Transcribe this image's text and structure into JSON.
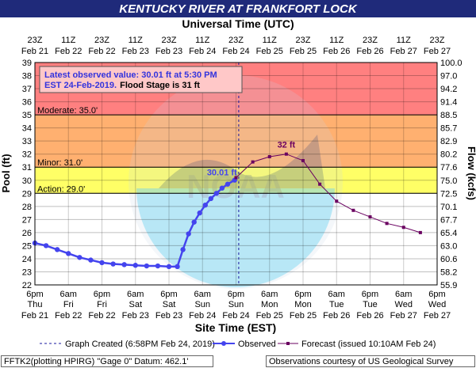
{
  "title": "KENTUCKY RIVER AT FRANKFORT LOCK",
  "utc_axis_label": "Universal Time (UTC)",
  "est_axis_label": "Site Time (EST)",
  "colors": {
    "title_bg": "#1f2a7a",
    "major": "#ff8080",
    "moderate": "#ffb070",
    "minor": "#ffff66",
    "observed": "#4444ee",
    "forecast": "#6a0060",
    "created_line": "#1a1aa0"
  },
  "info_box": {
    "line1": "Latest observed value: 30.01 ft at 5:30 PM",
    "line2a": "EST 24-Feb-2019.",
    "line2b": "Flood Stage is 31 ft"
  },
  "legend": {
    "created": "Graph Created (6:58PM Feb 24, 2019)",
    "observed": "Observed",
    "forecast": "Forecast (issued 10:10AM Feb 24)"
  },
  "footer": {
    "left": "FFTK2(plotting HPIRG) \"Gage 0\" Datum: 462.1'",
    "right": "Observations courtesy of US Geological Survey"
  },
  "chart_data": {
    "type": "line",
    "title": "KENTUCKY RIVER AT FRANKFORT LOCK",
    "ylabel": "Pool (ft)",
    "y2label": "Flow (kcfs)",
    "xlabel": "Site Time (EST)",
    "x2label": "Universal Time (UTC)",
    "ylim": [
      22,
      39
    ],
    "x_range": [
      "2019-02-21 18:00",
      "2019-02-27 18:00"
    ],
    "left_ticks": [
      22,
      23,
      24,
      25,
      26,
      27,
      28,
      29,
      30,
      31,
      32,
      33,
      34,
      35,
      36,
      37,
      38,
      39
    ],
    "right_ticks": [
      "55.9",
      "58.2",
      "60.6",
      "63.0",
      "65.4",
      "67.7",
      "70.1",
      "72.5",
      "75.0",
      "77.6",
      "80.2",
      "82.9",
      "85.7",
      "88.5",
      "91.4",
      "94.2",
      "97.0",
      "100.0"
    ],
    "top_ticks": [
      {
        "t": "23Z",
        "d": "Feb 21"
      },
      {
        "t": "11Z",
        "d": "Feb 22"
      },
      {
        "t": "23Z",
        "d": "Feb 22"
      },
      {
        "t": "11Z",
        "d": "Feb 23"
      },
      {
        "t": "23Z",
        "d": "Feb 23"
      },
      {
        "t": "11Z",
        "d": "Feb 24"
      },
      {
        "t": "23Z",
        "d": "Feb 24"
      },
      {
        "t": "11Z",
        "d": "Feb 25"
      },
      {
        "t": "23Z",
        "d": "Feb 25"
      },
      {
        "t": "11Z",
        "d": "Feb 26"
      },
      {
        "t": "23Z",
        "d": "Feb 26"
      },
      {
        "t": "11Z",
        "d": "Feb 27"
      },
      {
        "t": "23Z",
        "d": "Feb 27"
      }
    ],
    "bottom_ticks": [
      {
        "t": "6pm",
        "w": "Thu",
        "d": "Feb 21"
      },
      {
        "t": "6am",
        "w": "Fri",
        "d": "Feb 22"
      },
      {
        "t": "6pm",
        "w": "Fri",
        "d": "Feb 22"
      },
      {
        "t": "6am",
        "w": "Sat",
        "d": "Feb 23"
      },
      {
        "t": "6pm",
        "w": "Sat",
        "d": "Feb 23"
      },
      {
        "t": "6am",
        "w": "Sun",
        "d": "Feb 24"
      },
      {
        "t": "6pm",
        "w": "Sun",
        "d": "Feb 24"
      },
      {
        "t": "6am",
        "w": "Mon",
        "d": "Feb 25"
      },
      {
        "t": "6pm",
        "w": "Mon",
        "d": "Feb 25"
      },
      {
        "t": "6am",
        "w": "Tue",
        "d": "Feb 26"
      },
      {
        "t": "6pm",
        "w": "Tue",
        "d": "Feb 26"
      },
      {
        "t": "6am",
        "w": "Wed",
        "d": "Feb 27"
      },
      {
        "t": "6pm",
        "w": "Wed",
        "d": "Feb 27"
      }
    ],
    "flood_categories": [
      {
        "name": "Major",
        "from": 35,
        "to": 39,
        "label": ""
      },
      {
        "name": "Moderate",
        "from": 31,
        "to": 35,
        "label": "Moderate: 35.0'"
      },
      {
        "name": "Minor",
        "from": 29,
        "to": 31,
        "label": "Minor: 31.0'"
      },
      {
        "name": "Action",
        "from": 29,
        "to": 29,
        "label": "Action: 29.0'"
      }
    ],
    "graph_created": "2019-02-24 18:58",
    "series": [
      {
        "name": "Observed",
        "x": [
          "2019-02-21 18:00",
          "2019-02-21 22:00",
          "2019-02-22 02:00",
          "2019-02-22 06:00",
          "2019-02-22 10:00",
          "2019-02-22 14:00",
          "2019-02-22 18:00",
          "2019-02-22 22:00",
          "2019-02-23 02:00",
          "2019-02-23 06:00",
          "2019-02-23 10:00",
          "2019-02-23 14:00",
          "2019-02-23 18:00",
          "2019-02-23 21:00",
          "2019-02-23 23:00",
          "2019-02-24 01:00",
          "2019-02-24 03:00",
          "2019-02-24 05:00",
          "2019-02-24 07:00",
          "2019-02-24 09:00",
          "2019-02-24 11:00",
          "2019-02-24 13:00",
          "2019-02-24 15:00",
          "2019-02-24 17:30"
        ],
        "values": [
          25.2,
          25.0,
          24.7,
          24.4,
          24.1,
          23.9,
          23.7,
          23.6,
          23.55,
          23.5,
          23.45,
          23.45,
          23.4,
          23.4,
          24.7,
          25.9,
          26.8,
          27.5,
          28.1,
          28.6,
          29.0,
          29.4,
          29.7,
          30.01
        ]
      },
      {
        "name": "Forecast",
        "x": [
          "2019-02-24 18:00",
          "2019-02-25 00:00",
          "2019-02-25 06:00",
          "2019-02-25 12:00",
          "2019-02-25 18:00",
          "2019-02-26 00:00",
          "2019-02-26 06:00",
          "2019-02-26 12:00",
          "2019-02-26 18:00",
          "2019-02-27 00:00",
          "2019-02-27 06:00",
          "2019-02-27 12:00"
        ],
        "values": [
          30.2,
          31.4,
          31.8,
          32.0,
          31.5,
          29.7,
          28.4,
          27.7,
          27.2,
          26.7,
          26.4,
          26.0
        ]
      }
    ],
    "annotations": [
      {
        "text": "30.01 ft",
        "x": "2019-02-24 17:30",
        "y": 30.01
      },
      {
        "text": "32 ft",
        "x": "2019-02-25 12:00",
        "y": 32.0
      }
    ]
  }
}
